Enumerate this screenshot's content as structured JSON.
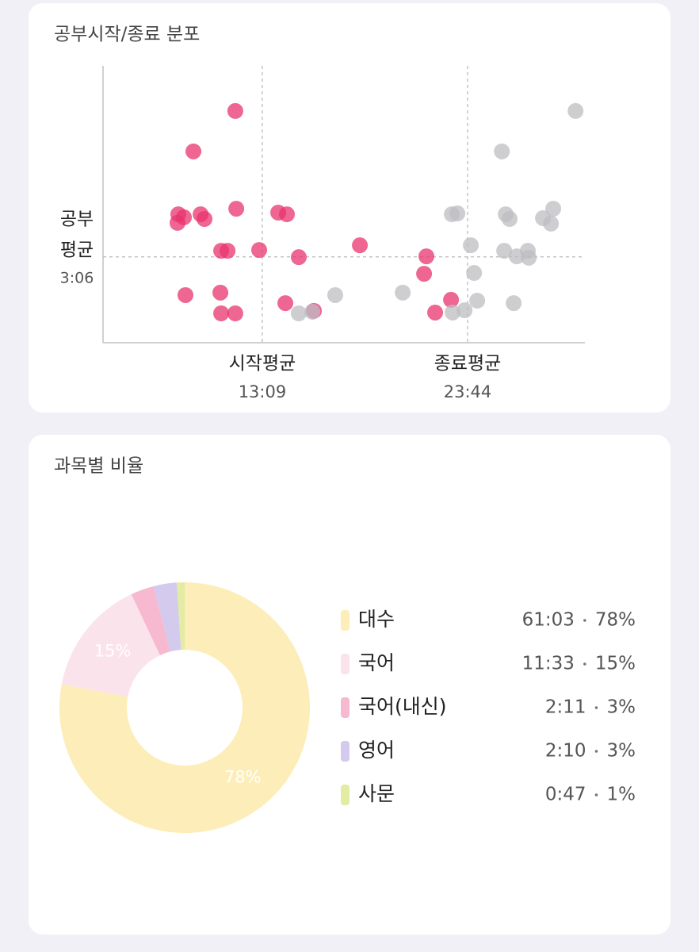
{
  "chart_data": [
    {
      "type": "scatter",
      "title": "공부시작/종료 분포",
      "xlim": [
        4.94,
        29.78
      ],
      "ylim": [
        0,
        10
      ],
      "grid": false,
      "series": [
        {
          "color": "#e8336e",
          "x": [
            11.76,
            9.6,
            8.82,
            8.78,
            9.11,
            9.97,
            10.17,
            11.81,
            13.97,
            14.42,
            11.03,
            11.36,
            12.99,
            15.03,
            18.18,
            9.19,
            10.99,
            11.03,
            11.76,
            14.34,
            15.81,
            21.61,
            21.49,
            22.88,
            22.06
          ],
          "values": [
            8.37,
            6.91,
            4.64,
            4.33,
            4.53,
            4.64,
            4.47,
            4.84,
            4.7,
            4.64,
            3.32,
            3.32,
            3.35,
            3.09,
            3.52,
            1.72,
            1.81,
            1.06,
            1.06,
            1.43,
            1.15,
            3.12,
            2.49,
            1.55,
            1.09
          ]
        },
        {
          "color": "#bdbdc2",
          "x": [
            29.3,
            25.5,
            22.92,
            23.21,
            25.7,
            25.9,
            27.62,
            28.15,
            28.03,
            23.9,
            25.62,
            26.27,
            26.84,
            26.89,
            24.07,
            20.39,
            16.91,
            15.03,
            15.73,
            24.23,
            26.11,
            22.96,
            23.58
          ],
          "values": [
            8.37,
            6.91,
            4.64,
            4.67,
            4.64,
            4.47,
            4.5,
            4.84,
            4.3,
            3.52,
            3.32,
            3.12,
            3.32,
            3.07,
            2.52,
            1.81,
            1.72,
            1.06,
            1.12,
            1.52,
            1.43,
            1.09,
            1.17
          ]
        }
      ],
      "x_refs": [
        {
          "label": "시작평균",
          "value": 13.15,
          "value_label": "13:09"
        },
        {
          "label": "종료평균",
          "value": 23.733,
          "value_label": "23:44"
        }
      ],
      "y_ref": {
        "label": [
          "공부",
          "평균"
        ],
        "value": 3.1,
        "value_label": "3:06"
      }
    },
    {
      "type": "pie",
      "title": "과목별 비율",
      "categories": [
        "대수",
        "국어",
        "국어(내신)",
        "영어",
        "사문"
      ],
      "values": [
        78,
        15,
        3,
        3,
        1
      ],
      "value_labels": [
        "78%",
        "15%",
        "3%",
        "3%",
        "1%"
      ],
      "durations": [
        "61:03",
        "11:33",
        "2:11",
        "2:10",
        "0:47"
      ],
      "colors": [
        "#fdedb8",
        "#fbe3ec",
        "#f7b9cf",
        "#d4caee",
        "#e3eca2"
      ]
    }
  ]
}
